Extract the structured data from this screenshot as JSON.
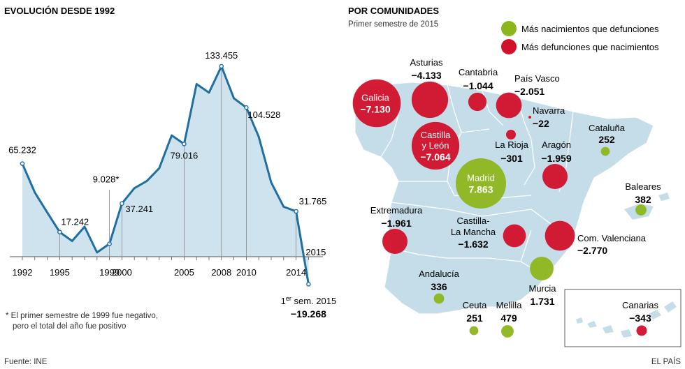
{
  "colors": {
    "area_fill": "#cfe3ee",
    "line": "#1f6fa0",
    "grid": "#888888",
    "map_fill": "#c5dde9",
    "map_border": "#ffffff",
    "positive": "#8db51c",
    "negative": "#d2102b"
  },
  "left_chart": {
    "title": "EVOLUCIÓN DESDE 1992",
    "footnote_line1": "* El primer semestre de 1999 fue negativo,",
    "footnote_line2": "pero el total del año fue positivo",
    "source": "Fuente: INE"
  },
  "right_chart": {
    "title": "POR COMUNIDADES",
    "subtitle": "Primer semestre de 2015",
    "legend_positive": "Más nacimientos que defunciones",
    "legend_negative": "Más defunciones que nacimientos",
    "credit": "EL PAÍS"
  },
  "chart_data": [
    {
      "type": "area",
      "title": "EVOLUCIÓN DESDE 1992",
      "x": [
        "1992",
        "1993",
        "1994",
        "1995",
        "1996",
        "1997",
        "1998",
        "1999",
        "2000",
        "2001",
        "2002",
        "2003",
        "2004",
        "2005",
        "2006",
        "2007",
        "2008",
        "2009",
        "2010",
        "2011",
        "2012",
        "2013",
        "2014",
        "1er sem. 2015"
      ],
      "values": [
        65232,
        45000,
        31000,
        17242,
        11000,
        21000,
        3000,
        9028,
        37241,
        48000,
        53000,
        62000,
        85000,
        79016,
        121000,
        115000,
        133455,
        111000,
        104528,
        84000,
        52000,
        35000,
        31765,
        -19268
      ],
      "tick_labels": [
        "1992",
        "1995",
        "1999",
        "2000",
        "2005",
        "2008",
        "2010",
        "2014",
        "2015"
      ],
      "data_labels": [
        {
          "x": "1992",
          "text": "65.232"
        },
        {
          "x": "1995",
          "text": "17.242"
        },
        {
          "x": "1999",
          "text": "9.028*"
        },
        {
          "x": "2000",
          "text": "37.241"
        },
        {
          "x": "2005",
          "text": "79.016"
        },
        {
          "x": "2008",
          "text": "133.455"
        },
        {
          "x": "2010",
          "text": "104.528"
        },
        {
          "x": "2014",
          "text": "31.765"
        },
        {
          "x": "1er sem. 2015",
          "text": "−19.268",
          "sup_prefix": "er",
          "prefix": "1",
          "suffix": " sem. 2015"
        }
      ],
      "ylim": [
        -19268,
        133455
      ]
    },
    {
      "type": "bubble-map",
      "title": "POR COMUNIDADES",
      "series": [
        {
          "name": "Galicia",
          "value": -7130,
          "label_value": "−7.130",
          "inside": true
        },
        {
          "name": "Asturias",
          "value": -4133,
          "label_value": "−4.133",
          "inside": false
        },
        {
          "name": "Cantabria",
          "value": -1044,
          "label_value": "−1.044",
          "inside": false
        },
        {
          "name": "País Vasco",
          "value": -2051,
          "label_value": "−2.051",
          "inside": false
        },
        {
          "name": "Navarra",
          "value": -22,
          "label_value": "−22",
          "inside": false
        },
        {
          "name": "Cataluña",
          "value": 252,
          "label_value": "252",
          "inside": false
        },
        {
          "name": "Castilla y León",
          "name_lines": [
            "Castilla",
            "y León"
          ],
          "value": -7064,
          "label_value": "−7.064",
          "inside": true
        },
        {
          "name": "La Rioja",
          "value": -301,
          "label_value": "−301",
          "inside": false
        },
        {
          "name": "Aragón",
          "value": -1959,
          "label_value": "−1.959",
          "inside": false
        },
        {
          "name": "Madrid",
          "value": 7863,
          "label_value": "7.863",
          "inside": true
        },
        {
          "name": "Baleares",
          "value": 382,
          "label_value": "382",
          "inside": false
        },
        {
          "name": "Extremadura",
          "value": -1961,
          "label_value": "−1.961",
          "inside": false
        },
        {
          "name": "Castilla-La Mancha",
          "name_lines": [
            "Castilla-",
            "La Mancha"
          ],
          "value": -1632,
          "label_value": "−1.632",
          "inside": false
        },
        {
          "name": "Com. Valenciana",
          "value": -2770,
          "label_value": "−2.770",
          "inside": false
        },
        {
          "name": "Andalucía",
          "value": 336,
          "label_value": "336",
          "inside": false
        },
        {
          "name": "Murcia",
          "value": 1731,
          "label_value": "1.731",
          "inside": false
        },
        {
          "name": "Ceuta",
          "value": 251,
          "label_value": "251",
          "inside": false
        },
        {
          "name": "Melilla",
          "value": 479,
          "label_value": "479",
          "inside": false
        },
        {
          "name": "Canarias",
          "value": -343,
          "label_value": "−343",
          "inside": false
        }
      ]
    }
  ]
}
